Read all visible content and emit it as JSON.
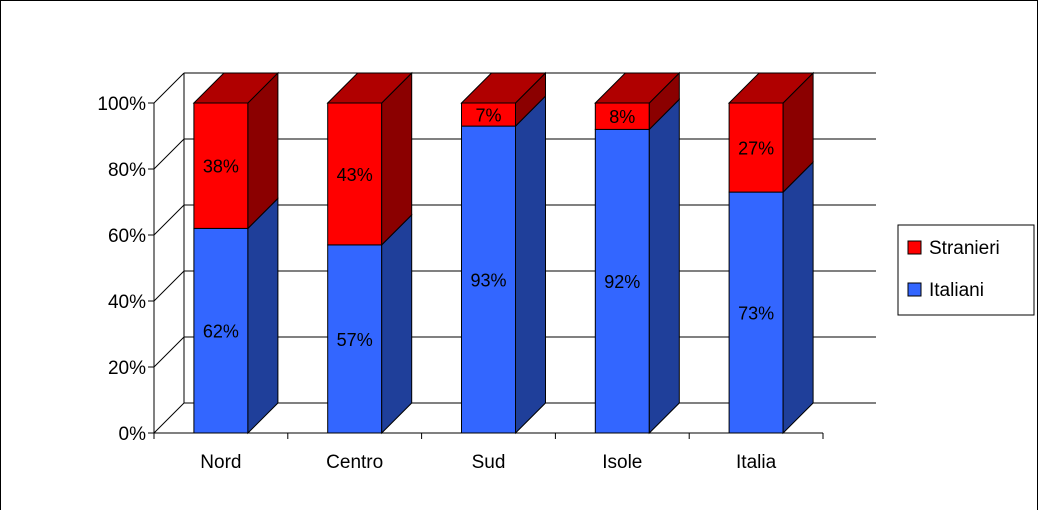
{
  "chart_data": {
    "type": "bar",
    "stacked": true,
    "style": "3d-stacked-percent",
    "categories": [
      "Nord",
      "Centro",
      "Sud",
      "Isole",
      "Italia"
    ],
    "series": [
      {
        "name": "Italiani",
        "values": [
          62,
          57,
          93,
          92,
          73
        ],
        "labels": [
          "62%",
          "57%",
          "93%",
          "92%",
          "73%"
        ],
        "color": "#3366ff"
      },
      {
        "name": "Stranieri",
        "values": [
          38,
          43,
          7,
          8,
          27
        ],
        "labels": [
          "38%",
          "43%",
          "7%",
          "8%",
          "27%"
        ],
        "color": "#ff0000"
      }
    ],
    "ylim": [
      0,
      100
    ],
    "yticks": [
      "0%",
      "20%",
      "40%",
      "60%",
      "80%",
      "100%"
    ],
    "grid": true,
    "legend": {
      "position": "right",
      "order": [
        "Stranieri",
        "Italiani"
      ]
    }
  }
}
